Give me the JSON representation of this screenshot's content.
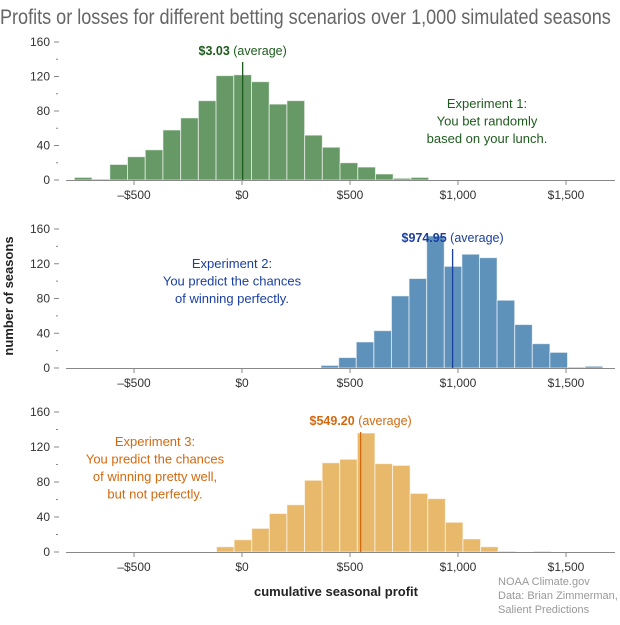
{
  "title": "Profits or losses for different betting scenarios over 1,000 simulated seasons",
  "ylabel": "number of seasons",
  "xlabel": "cumulative seasonal profit",
  "credit": [
    "NOAA Climate.gov",
    "Data: Brian Zimmerman,",
    "Salient Predictions"
  ],
  "chart_data": [
    {
      "type": "bar",
      "bin_width": 82,
      "first_bin_start": -776,
      "values": [
        3,
        1,
        18,
        27,
        35,
        58,
        72,
        92,
        121,
        122,
        114,
        88,
        92,
        52,
        38,
        20,
        15,
        7,
        2,
        3
      ],
      "mean_value": "$3.03",
      "mean": 3.03,
      "mean_suffix": "(average)",
      "annotation": [
        "Experiment 1:",
        "You bet randomly",
        "based on your lunch."
      ],
      "bar_color": "#669966",
      "text_color": "#1e5c1e",
      "xticks": [
        "–$500",
        "$0",
        "$500",
        "$1,000",
        "$1,500"
      ],
      "xtick_values": [
        -500,
        0,
        500,
        1000,
        1500
      ],
      "yticks": [
        "0",
        "40",
        "80",
        "120",
        "160"
      ],
      "ylim": [
        0,
        160
      ],
      "xlim": [
        -800,
        1700
      ]
    },
    {
      "type": "bar",
      "bin_width": 81.5,
      "first_bin_start": 366,
      "values": [
        3,
        12,
        30,
        43,
        83,
        103,
        152,
        117,
        131,
        127,
        78,
        50,
        28,
        18,
        1,
        2
      ],
      "mean_value": "$974.95",
      "mean": 974.95,
      "mean_suffix": "(average)",
      "annotation": [
        "Experiment 2:",
        "You predict the chances",
        "of winning perfectly."
      ],
      "bar_color": "#5f92ba",
      "text_color": "#1a3fa0",
      "xticks": [
        "–$500",
        "$0",
        "$500",
        "$1,000",
        "$1,500"
      ],
      "xtick_values": [
        -500,
        0,
        500,
        1000,
        1500
      ],
      "yticks": [
        "0",
        "40",
        "80",
        "120",
        "160"
      ],
      "ylim": [
        0,
        160
      ],
      "xlim": [
        -800,
        1700
      ]
    },
    {
      "type": "bar",
      "bin_width": 81.5,
      "first_bin_start": -118,
      "values": [
        6,
        14,
        27,
        44,
        54,
        82,
        102,
        106,
        136,
        101,
        99,
        67,
        61,
        34,
        15,
        6,
        1,
        0,
        1
      ],
      "mean_value": "$549.20",
      "mean": 549.2,
      "mean_suffix": "(average)",
      "annotation": [
        "Experiment 3:",
        "You predict the chances",
        "of winning pretty well,",
        "but not perfectly."
      ],
      "bar_color": "#e8b96b",
      "text_color": "#d2690f",
      "xticks": [
        "–$500",
        "$0",
        "$500",
        "$1,000",
        "$1,500"
      ],
      "xtick_values": [
        -500,
        0,
        500,
        1000,
        1500
      ],
      "yticks": [
        "0",
        "40",
        "80",
        "120",
        "160"
      ],
      "ylim": [
        0,
        160
      ],
      "xlim": [
        -800,
        1700
      ]
    }
  ]
}
